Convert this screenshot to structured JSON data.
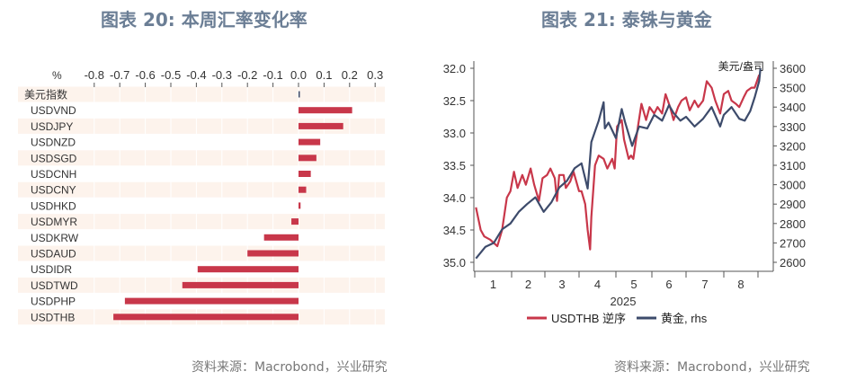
{
  "titles": {
    "left": "图表 20: 本周汇率变化率",
    "right": "图表 21: 泰铢与黄金"
  },
  "sources": {
    "left": "资料来源：Macrobond，兴业研究",
    "right": "资料来源：Macrobond，兴业研究"
  },
  "chart_data": [
    {
      "type": "bar",
      "orientation": "horizontal",
      "unit_label": "%",
      "categories": [
        "美元指数",
        "USDVND",
        "USDJPY",
        "USDNZD",
        "USDSGD",
        "USDCNH",
        "USDCNY",
        "USDHKD",
        "USDMYR",
        "USDKRW",
        "USDAUD",
        "USDIDR",
        "USDTWD",
        "USDPHP",
        "USDTHB"
      ],
      "values": [
        0.003,
        0.21,
        0.175,
        0.085,
        0.07,
        0.048,
        0.03,
        0.008,
        -0.028,
        -0.135,
        -0.2,
        -0.395,
        -0.455,
        -0.68,
        -0.725
      ],
      "xlim": [
        -0.8,
        0.3
      ],
      "xticks": [
        "-0.8",
        "-0.7",
        "-0.6",
        "-0.5",
        "-0.4",
        "-0.3",
        "-0.2",
        "-0.1",
        "0.0",
        "0.1",
        "0.2",
        "0.3"
      ],
      "bar_color": "#c8374a",
      "band_color": "#fdf3ec"
    },
    {
      "type": "line",
      "xlabel": "2025",
      "xticks": [
        "1",
        "2",
        "3",
        "4",
        "5",
        "6",
        "7",
        "8"
      ],
      "y_left": {
        "lim": [
          32.0,
          35.0
        ],
        "inverted": true,
        "ticks": [
          "32.0",
          "32.5",
          "33.0",
          "33.5",
          "34.0",
          "34.5",
          "35.0"
        ]
      },
      "y_right": {
        "lim": [
          2600,
          3600
        ],
        "ticks": [
          "3600",
          "3500",
          "3400",
          "3300",
          "3200",
          "3100",
          "3000",
          "2900",
          "2800",
          "2700",
          "2600"
        ],
        "unit": "美元/盎司"
      },
      "series": [
        {
          "name": "USDTHB 逆序",
          "axis": "left",
          "color": "#c8374a",
          "points": [
            [
              "2025-01-02",
              34.15
            ],
            [
              "2025-01-06",
              34.5
            ],
            [
              "2025-01-09",
              34.6
            ],
            [
              "2025-01-14",
              34.65
            ],
            [
              "2025-01-20",
              34.75
            ],
            [
              "2025-01-24",
              34.5
            ],
            [
              "2025-01-28",
              34.0
            ],
            [
              "2025-01-31",
              33.9
            ],
            [
              "2025-02-03",
              33.6
            ],
            [
              "2025-02-06",
              33.85
            ],
            [
              "2025-02-10",
              33.65
            ],
            [
              "2025-02-13",
              33.8
            ],
            [
              "2025-02-17",
              33.55
            ],
            [
              "2025-02-20",
              33.8
            ],
            [
              "2025-02-24",
              34.05
            ],
            [
              "2025-02-27",
              33.7
            ],
            [
              "2025-03-03",
              33.65
            ],
            [
              "2025-03-06",
              33.55
            ],
            [
              "2025-03-10",
              33.7
            ],
            [
              "2025-03-12",
              34.05
            ],
            [
              "2025-03-14",
              33.65
            ],
            [
              "2025-03-18",
              33.65
            ],
            [
              "2025-03-20",
              33.85
            ],
            [
              "2025-03-24",
              33.75
            ],
            [
              "2025-03-27",
              33.6
            ],
            [
              "2025-04-01",
              33.9
            ],
            [
              "2025-04-03",
              33.9
            ],
            [
              "2025-04-06",
              34.1
            ],
            [
              "2025-04-08",
              34.5
            ],
            [
              "2025-04-10",
              34.8
            ],
            [
              "2025-04-11",
              34.3
            ],
            [
              "2025-04-14",
              33.5
            ],
            [
              "2025-04-17",
              33.35
            ],
            [
              "2025-04-21",
              33.4
            ],
            [
              "2025-04-24",
              33.55
            ],
            [
              "2025-04-28",
              33.4
            ],
            [
              "2025-04-30",
              33.55
            ],
            [
              "2025-05-02",
              32.9
            ],
            [
              "2025-05-06",
              32.8
            ],
            [
              "2025-05-08",
              33.1
            ],
            [
              "2025-05-12",
              33.4
            ],
            [
              "2025-05-14",
              33.35
            ],
            [
              "2025-05-16",
              33.4
            ],
            [
              "2025-05-20",
              32.9
            ],
            [
              "2025-05-23",
              32.55
            ],
            [
              "2025-05-27",
              32.8
            ],
            [
              "2025-05-30",
              32.6
            ],
            [
              "2025-06-03",
              32.7
            ],
            [
              "2025-06-06",
              32.6
            ],
            [
              "2025-06-10",
              32.7
            ],
            [
              "2025-06-13",
              32.4
            ],
            [
              "2025-06-17",
              32.6
            ],
            [
              "2025-06-20",
              32.8
            ],
            [
              "2025-06-24",
              32.6
            ],
            [
              "2025-06-27",
              32.5
            ],
            [
              "2025-07-01",
              32.45
            ],
            [
              "2025-07-04",
              32.65
            ],
            [
              "2025-07-08",
              32.5
            ],
            [
              "2025-07-11",
              32.6
            ],
            [
              "2025-07-15",
              32.5
            ],
            [
              "2025-07-18",
              32.2
            ],
            [
              "2025-07-22",
              32.3
            ],
            [
              "2025-07-25",
              32.5
            ],
            [
              "2025-07-29",
              32.7
            ],
            [
              "2025-08-01",
              32.4
            ],
            [
              "2025-08-05",
              32.35
            ],
            [
              "2025-08-08",
              32.5
            ],
            [
              "2025-08-12",
              32.55
            ],
            [
              "2025-08-15",
              32.6
            ],
            [
              "2025-08-19",
              32.45
            ],
            [
              "2025-08-22",
              32.35
            ],
            [
              "2025-08-26",
              32.3
            ],
            [
              "2025-08-29",
              32.3
            ],
            [
              "2025-09-02",
              32.1
            ]
          ]
        },
        {
          "name": "黄金, rhs",
          "axis": "right",
          "color": "#3d4b6b",
          "points": [
            [
              "2025-01-02",
              2620
            ],
            [
              "2025-01-10",
              2680
            ],
            [
              "2025-01-17",
              2700
            ],
            [
              "2025-01-24",
              2770
            ],
            [
              "2025-01-31",
              2800
            ],
            [
              "2025-02-07",
              2860
            ],
            [
              "2025-02-14",
              2900
            ],
            [
              "2025-02-21",
              2935
            ],
            [
              "2025-02-28",
              2860
            ],
            [
              "2025-03-07",
              2910
            ],
            [
              "2025-03-14",
              2985
            ],
            [
              "2025-03-21",
              3020
            ],
            [
              "2025-03-28",
              3085
            ],
            [
              "2025-04-03",
              3110
            ],
            [
              "2025-04-08",
              2980
            ],
            [
              "2025-04-11",
              3220
            ],
            [
              "2025-04-17",
              3330
            ],
            [
              "2025-04-21",
              3425
            ],
            [
              "2025-04-22",
              3290
            ],
            [
              "2025-04-25",
              3320
            ],
            [
              "2025-05-01",
              3240
            ],
            [
              "2025-05-06",
              3390
            ],
            [
              "2025-05-09",
              3320
            ],
            [
              "2025-05-15",
              3200
            ],
            [
              "2025-05-21",
              3300
            ],
            [
              "2025-05-28",
              3290
            ],
            [
              "2025-06-03",
              3360
            ],
            [
              "2025-06-10",
              3330
            ],
            [
              "2025-06-16",
              3410
            ],
            [
              "2025-06-20",
              3370
            ],
            [
              "2025-06-26",
              3330
            ],
            [
              "2025-07-01",
              3350
            ],
            [
              "2025-07-08",
              3300
            ],
            [
              "2025-07-15",
              3340
            ],
            [
              "2025-07-22",
              3400
            ],
            [
              "2025-07-29",
              3300
            ],
            [
              "2025-08-01",
              3360
            ],
            [
              "2025-08-08",
              3400
            ],
            [
              "2025-08-15",
              3340
            ],
            [
              "2025-08-20",
              3330
            ],
            [
              "2025-08-25",
              3380
            ],
            [
              "2025-08-29",
              3450
            ],
            [
              "2025-09-02",
              3535
            ],
            [
              "2025-09-03",
              3600
            ]
          ]
        }
      ],
      "legend": "bottom"
    }
  ]
}
